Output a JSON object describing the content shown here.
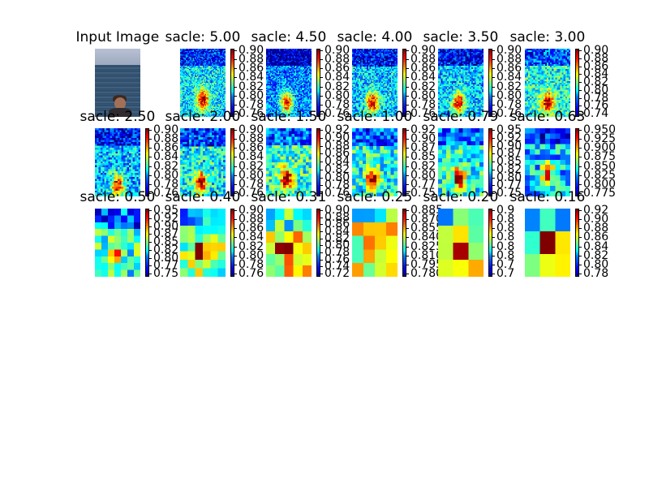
{
  "chart_data": {
    "type": "heatmap",
    "colormap": "jet",
    "input_panel": {
      "title": "Input Image",
      "content": "photo of a person in the sea"
    },
    "panels": [
      {
        "title": "sacle: 5.00",
        "ticks": [
          "0.90",
          "0.88",
          "0.86",
          "0.84",
          "0.82",
          "0.80",
          "0.78",
          "0.76"
        ],
        "grid": [
          40,
          60
        ],
        "hot": [
          0.5,
          0.75
        ],
        "base": 0.35
      },
      {
        "title": "sacle: 4.50",
        "ticks": [
          "0.90",
          "0.88",
          "0.86",
          "0.84",
          "0.82",
          "0.80",
          "0.78",
          "0.76"
        ],
        "grid": [
          38,
          56
        ],
        "hot": [
          0.45,
          0.8
        ],
        "base": 0.25
      },
      {
        "title": "sacle: 4.00",
        "ticks": [
          "0.90",
          "0.88",
          "0.86",
          "0.84",
          "0.82",
          "0.80",
          "0.78",
          "0.76"
        ],
        "grid": [
          34,
          50
        ],
        "hot": [
          0.45,
          0.8
        ],
        "base": 0.33
      },
      {
        "title": "sacle: 3.50",
        "ticks": [
          "0.90",
          "0.88",
          "0.86",
          "0.84",
          "0.82",
          "0.80",
          "0.78",
          "0.76"
        ],
        "grid": [
          30,
          44
        ],
        "hot": [
          0.45,
          0.8
        ],
        "base": 0.32
      },
      {
        "title": "sacle: 3.00",
        "ticks": [
          "0.90",
          "0.88",
          "0.86",
          "0.84",
          "0.82",
          "0.80",
          "0.78",
          "0.76",
          "0.74"
        ],
        "grid": [
          27,
          40
        ],
        "hot": [
          0.5,
          0.8
        ],
        "base": 0.4
      },
      {
        "title": "sacle: 2.50",
        "ticks": [
          "0.90",
          "0.88",
          "0.86",
          "0.84",
          "0.82",
          "0.80",
          "0.78",
          "0.76"
        ],
        "grid": [
          24,
          35
        ],
        "hot": [
          0.5,
          0.85
        ],
        "base": 0.32
      },
      {
        "title": "sacle: 2.00",
        "ticks": [
          "0.90",
          "0.88",
          "0.86",
          "0.84",
          "0.82",
          "0.80",
          "0.78",
          "0.76"
        ],
        "grid": [
          20,
          30
        ],
        "hot": [
          0.45,
          0.8
        ],
        "base": 0.38
      },
      {
        "title": "sacle: 1.50",
        "ticks": [
          "0.92",
          "0.90",
          "0.88",
          "0.86",
          "0.84",
          "0.82",
          "0.80",
          "0.78",
          "0.76"
        ],
        "grid": [
          16,
          24
        ],
        "hot": [
          0.45,
          0.75
        ],
        "base": 0.42
      },
      {
        "title": "sacle: 1.00",
        "ticks": [
          "0.92",
          "0.90",
          "0.87",
          "0.85",
          "0.82",
          "0.80",
          "0.77",
          "0.75"
        ],
        "grid": [
          13,
          19
        ],
        "hot": [
          0.45,
          0.75
        ],
        "base": 0.4
      },
      {
        "title": "sacle: 0.79",
        "ticks": [
          "0.95",
          "0.92",
          "0.90",
          "0.87",
          "0.85",
          "0.82",
          "0.80",
          "0.77",
          "0.75"
        ],
        "grid": [
          11,
          16
        ],
        "hot": [
          0.45,
          0.75
        ],
        "base": 0.4
      },
      {
        "title": "sacle: 0.63",
        "ticks": [
          "0.950",
          "0.925",
          "0.900",
          "0.875",
          "0.850",
          "0.825",
          "0.800",
          "0.775"
        ],
        "grid": [
          9,
          13
        ],
        "hot": [
          0.5,
          0.68
        ],
        "base": 0.32
      },
      {
        "title": "sacle: 0.50",
        "ticks": [
          "0.95",
          "0.92",
          "0.90",
          "0.87",
          "0.85",
          "0.82",
          "0.80",
          "0.77",
          "0.75"
        ],
        "grid": [
          7,
          10
        ],
        "hot": [
          0.45,
          0.7
        ],
        "base": 0.42
      },
      {
        "title": "sacle: 0.40",
        "ticks": [
          "0.90",
          "0.88",
          "0.86",
          "0.84",
          "0.82",
          "0.80",
          "0.78",
          "0.76"
        ],
        "grid": [
          6,
          8
        ],
        "hot": [
          0.45,
          0.65
        ],
        "base": 0.5
      },
      {
        "title": "sacle: 0.31",
        "ticks": [
          "0.90",
          "0.88",
          "0.86",
          "0.84",
          "0.82",
          "0.80",
          "0.78",
          "0.76",
          "0.74",
          "0.72"
        ],
        "grid": [
          5,
          6
        ],
        "hot": [
          0.4,
          0.6
        ],
        "base": 0.62
      },
      {
        "title": "sacle: 0.25",
        "ticks": [
          "0.885",
          "0.870",
          "0.855",
          "0.840",
          "0.825",
          "0.810",
          "0.795",
          "0.780"
        ],
        "grid": [
          4,
          5
        ],
        "hot": [
          0.4,
          0.6
        ],
        "base": 0.6
      },
      {
        "title": "sacle: 0.20",
        "ticks": [
          "0.9",
          "0.8",
          "0.8",
          "0.8",
          "0.8",
          "0.8",
          "0.7",
          "0.7"
        ],
        "grid": [
          3,
          4
        ],
        "hot": [
          0.45,
          0.55
        ],
        "base": 0.55
      },
      {
        "title": "sacle: 0.16",
        "ticks": [
          "0.92",
          "0.90",
          "0.88",
          "0.86",
          "0.84",
          "0.82",
          "0.80",
          "0.78"
        ],
        "grid": [
          3,
          3
        ],
        "hot": [
          0.5,
          0.5
        ],
        "base": 0.55
      }
    ]
  }
}
